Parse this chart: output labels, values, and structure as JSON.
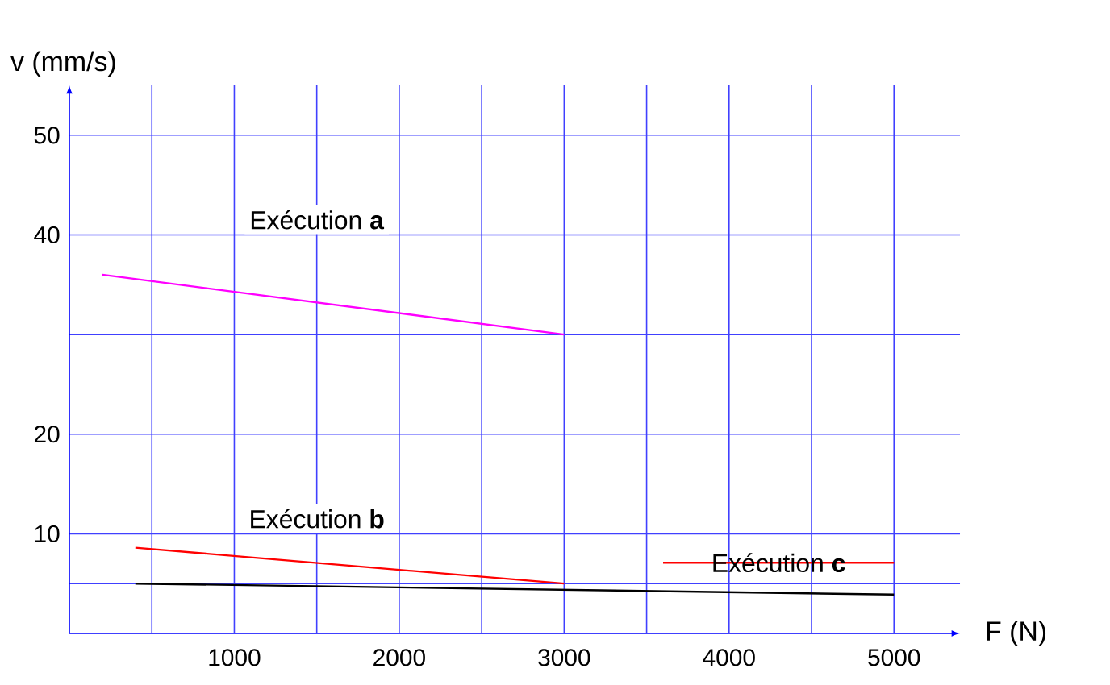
{
  "chart_data": {
    "type": "line",
    "xlabel": "F  (N)",
    "ylabel": "v  (mm/s)",
    "xlim": [
      0,
      5400
    ],
    "ylim": [
      0,
      55
    ],
    "xticks": [
      {
        "value": 500,
        "label": null
      },
      1000,
      {
        "value": 1500,
        "label": null
      },
      2000,
      {
        "value": 2500,
        "label": null
      },
      3000,
      {
        "value": 3500,
        "label": null
      },
      4000,
      {
        "value": 4500,
        "label": null
      },
      5000
    ],
    "yticks": [
      {
        "value": 5,
        "label": null
      },
      10,
      20,
      {
        "value": 30,
        "label": null
      },
      40,
      50
    ],
    "grid": true,
    "marker": "none",
    "line_style": "solid",
    "series": [
      {
        "color": "#ff00ff",
        "x": [
          200,
          3000
        ],
        "values": [
          36,
          30
        ]
      },
      {
        "color": "#ff0000",
        "x": [
          400,
          3000
        ],
        "values": [
          8.6,
          5
        ]
      },
      {
        "color": "#000000",
        "x": [
          400,
          5000
        ],
        "values": [
          5,
          3.9
        ]
      },
      {
        "color": "#ff0000",
        "x": [
          3600,
          5000
        ],
        "values": [
          7.1,
          7.1
        ]
      }
    ],
    "annotations": [
      "Exécution **a**",
      "Exécution **b**",
      "Exécution **c**"
    ]
  }
}
